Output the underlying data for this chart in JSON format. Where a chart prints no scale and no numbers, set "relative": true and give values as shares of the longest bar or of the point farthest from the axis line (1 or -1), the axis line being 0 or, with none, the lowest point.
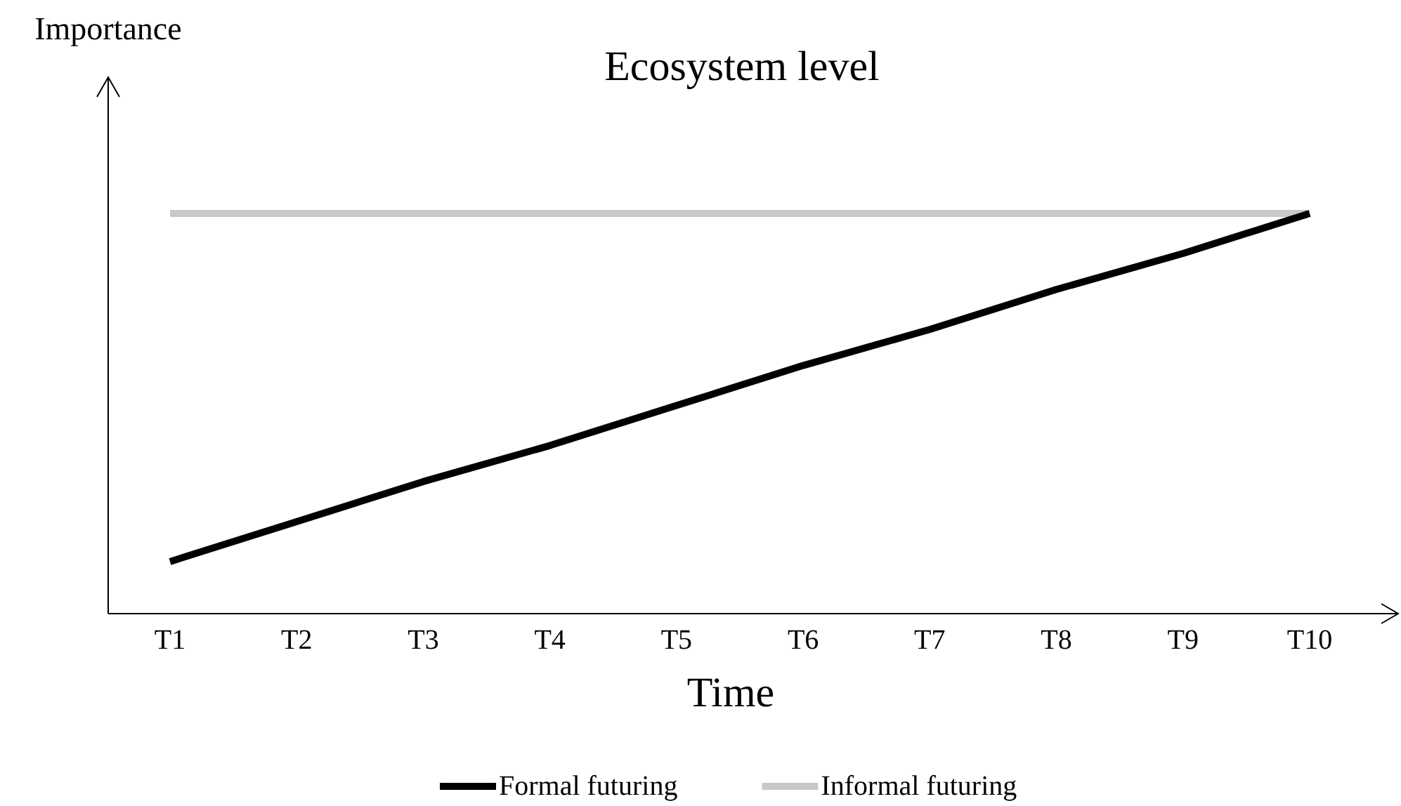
{
  "chart_data": {
    "type": "line",
    "title": "Ecosystem level",
    "xlabel": "Time",
    "annotations": [
      "Importance"
    ],
    "relative": true,
    "categories": [
      "T1",
      "T2",
      "T3",
      "T4",
      "T5",
      "T6",
      "T7",
      "T8",
      "T9",
      "T10"
    ],
    "series": [
      {
        "name": "Formal futuring",
        "color": "#000000",
        "values": [
          0.13,
          0.23,
          0.33,
          0.42,
          0.52,
          0.62,
          0.71,
          0.81,
          0.9,
          1
        ]
      },
      {
        "name": "Informal futuring",
        "color": "#c8c8c8",
        "values": [
          1,
          1,
          1,
          1,
          1,
          1,
          1,
          1,
          1,
          1
        ]
      }
    ],
    "legend": "bottom",
    "grid": false,
    "marker": "none",
    "line_style": "solid"
  }
}
